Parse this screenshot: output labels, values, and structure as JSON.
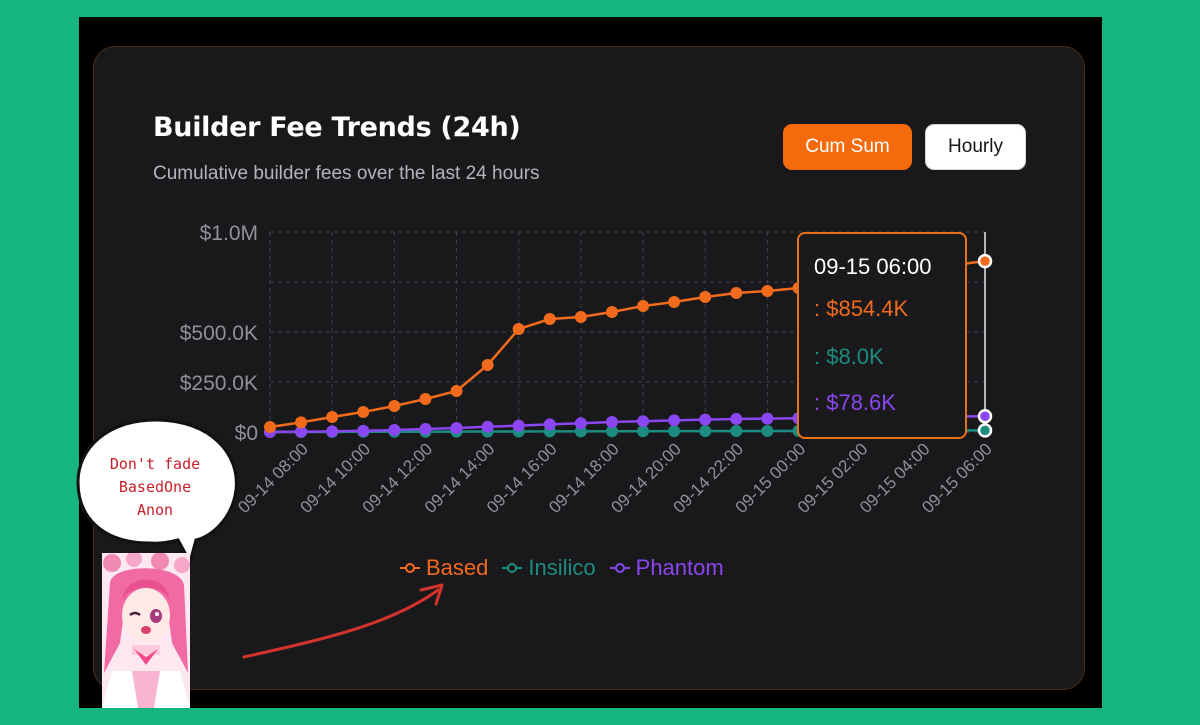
{
  "card": {
    "title": "Builder Fee Trends (24h)",
    "subtitle": "Cumulative builder fees over the last 24 hours"
  },
  "toggle": {
    "cum_sum_label": "Cum Sum",
    "hourly_label": "Hourly",
    "selected": "Cum Sum"
  },
  "tooltip": {
    "title": "09-15 06:00",
    "rows": [
      ": $854.4K",
      ": $8.0K",
      ": $78.6K"
    ]
  },
  "annotation": {
    "bubble_lines": [
      "Don't fade",
      "BasedOne",
      "Anon"
    ]
  },
  "colors": {
    "accent": "#f46a0c",
    "based": "#f26b1d",
    "insilico": "#1c8c80",
    "phantom": "#8a46f0"
  },
  "chart_data": {
    "type": "line",
    "y_tick_labels": [
      "$1.0M",
      "$500.0K",
      "$250.0K",
      "$0"
    ],
    "y_ticks": [
      1000000,
      500000,
      250000,
      0
    ],
    "ylim": [
      0,
      1000000
    ],
    "x_tick_labels": [
      "09-14 08:00",
      "09-14 10:00",
      "09-14 12:00",
      "09-14 14:00",
      "09-14 16:00",
      "09-14 18:00",
      "09-14 20:00",
      "09-14 22:00",
      "09-15 00:00",
      "09-15 02:00",
      "09-15 04:00",
      "09-15 06:00"
    ],
    "x": [
      "09-14 07:00",
      "09-14 08:00",
      "09-14 09:00",
      "09-14 10:00",
      "09-14 11:00",
      "09-14 12:00",
      "09-14 13:00",
      "09-14 14:00",
      "09-14 15:00",
      "09-14 16:00",
      "09-14 17:00",
      "09-14 18:00",
      "09-14 19:00",
      "09-14 20:00",
      "09-14 21:00",
      "09-14 22:00",
      "09-14 23:00",
      "09-15 00:00",
      "09-15 01:00",
      "09-15 02:00",
      "09-15 03:00",
      "09-15 04:00",
      "09-15 05:00",
      "09-15 06:00"
    ],
    "grid": true,
    "legend_position": "bottom",
    "series": [
      {
        "name": "Based",
        "values": [
          25000,
          48000,
          75000,
          100000,
          130000,
          165000,
          205000,
          335000,
          515000,
          565000,
          575000,
          600000,
          630000,
          650000,
          675000,
          695000,
          705000,
          720000,
          745000,
          765000,
          790000,
          810000,
          835000,
          854400
        ]
      },
      {
        "name": "Insilico",
        "values": [
          0,
          0,
          500,
          1000,
          1200,
          1500,
          2000,
          2300,
          2600,
          3000,
          3300,
          3600,
          4000,
          4300,
          4600,
          5000,
          5300,
          5700,
          6000,
          6400,
          6800,
          7200,
          7600,
          8000
        ]
      },
      {
        "name": "Phantom",
        "values": [
          0,
          1000,
          3000,
          6000,
          10000,
          15000,
          20000,
          26000,
          32000,
          38000,
          44000,
          50000,
          54000,
          58000,
          62000,
          65000,
          67000,
          69000,
          71000,
          73000,
          74500,
          76000,
          77500,
          78600
        ]
      }
    ]
  }
}
